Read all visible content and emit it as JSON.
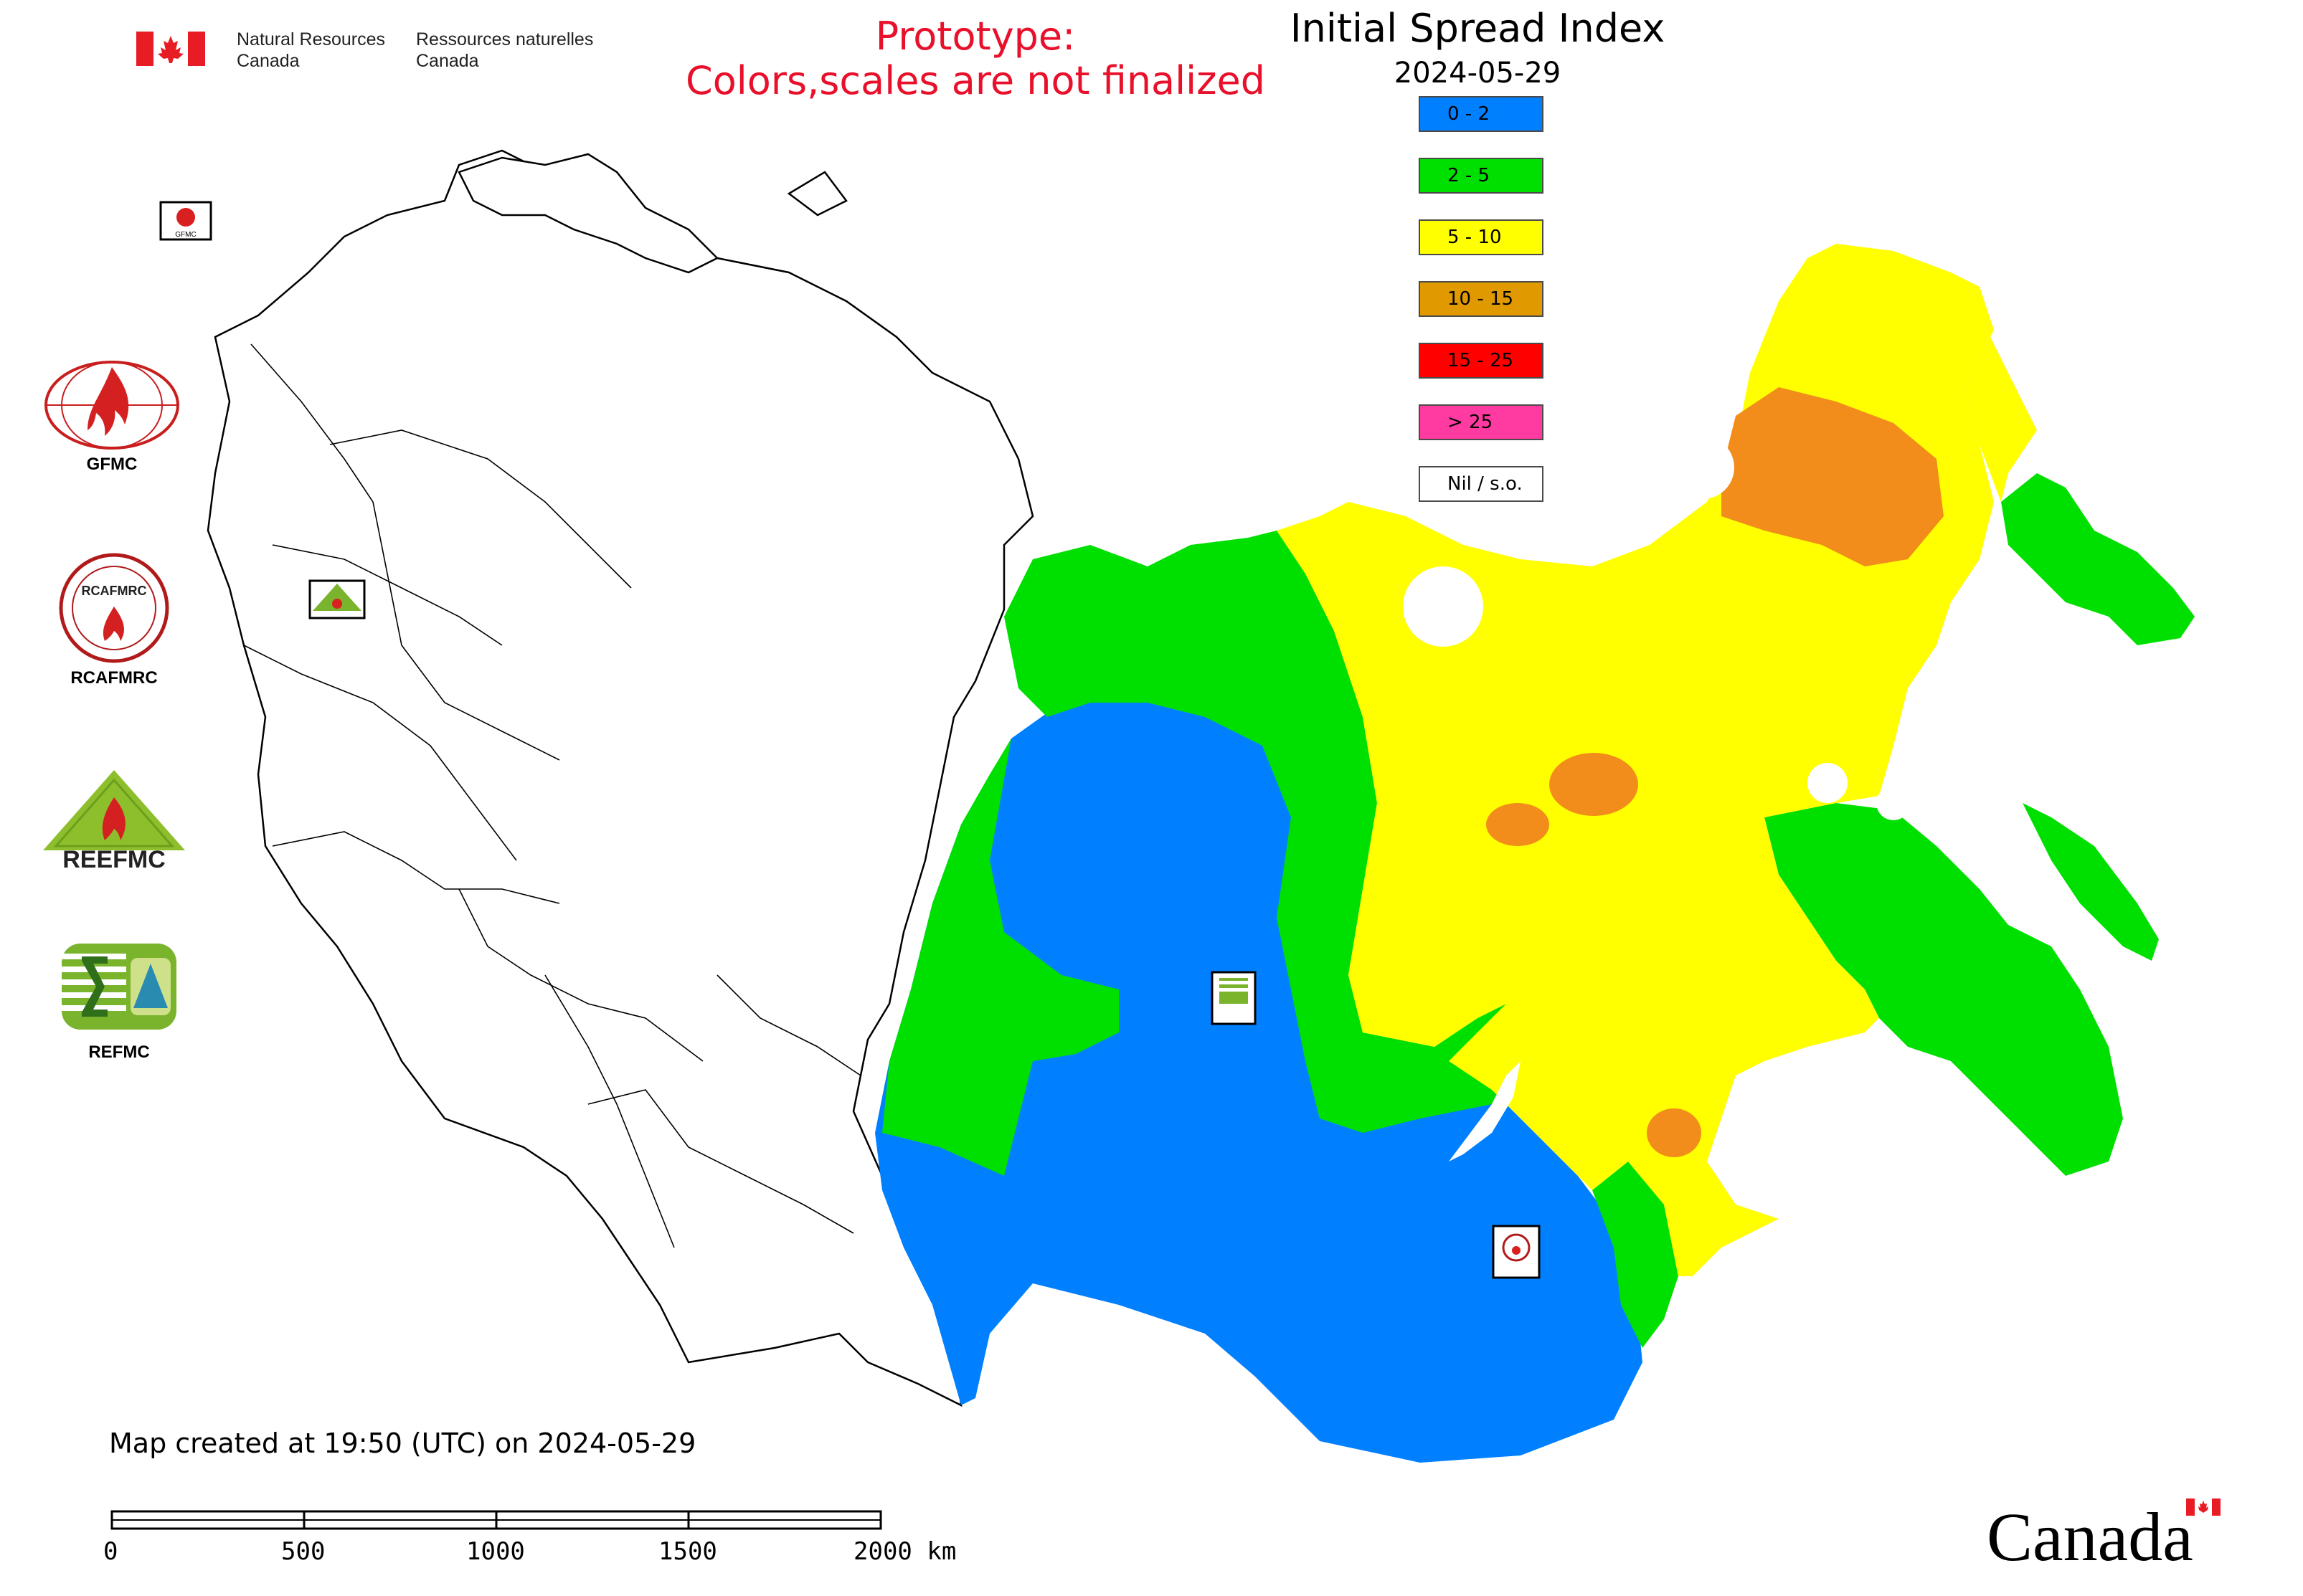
{
  "header": {
    "dept_en_line1": "Natural Resources",
    "dept_en_line2": "Canada",
    "dept_fr_line1": "Ressources naturelles",
    "dept_fr_line2": "Canada",
    "prototype_line1": "Prototype:",
    "prototype_line2": "Colors,scales are not finalized"
  },
  "map": {
    "title": "Initial Spread Index",
    "date": "2024-05-29",
    "legend": [
      {
        "label": "0 - 2",
        "color": "#0080ff"
      },
      {
        "label": "2 - 5",
        "color": "#00e000"
      },
      {
        "label": "5 - 10",
        "color": "#ffff00"
      },
      {
        "label": "10 - 15",
        "color": "#e09a00"
      },
      {
        "label": "15 - 25",
        "color": "#ff0000"
      },
      {
        "label": "> 25",
        "color": "#ff3aa0"
      },
      {
        "label": "Nil / s.o.",
        "color": "#ffffff"
      }
    ],
    "map_logo_labels": {
      "gfmc": "GFMC",
      "reefmc": "REEFMC",
      "refmc": "REFMC",
      "rcafmrc": "RCAFMRC"
    }
  },
  "logos": {
    "gfmc": "GFMC",
    "rcafmrc": "RCAFMRC",
    "reefmc": "REEFMC",
    "reefmc_wordmark": "REEFMC",
    "refmc": "REFMC",
    "rcafmrc_wordmark": "RCAFMRC"
  },
  "footer": {
    "created": "Map created at 19:50 (UTC) on 2024-05-29",
    "scale_labels": [
      "0",
      "500",
      "1000",
      "1500",
      "2000 km"
    ],
    "canada_wordmark": "Canada"
  },
  "icons": {
    "flag": "canada-flag-icon",
    "maple_leaf": "maple-leaf-icon"
  }
}
